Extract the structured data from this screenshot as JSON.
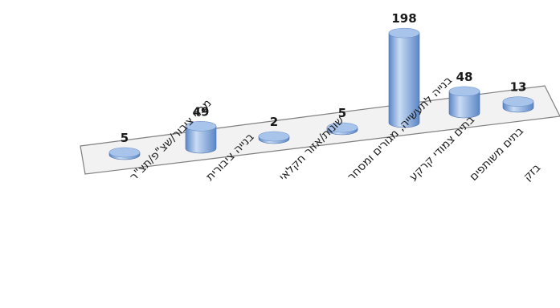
{
  "chart_data": {
    "type": "bar",
    "shape": "3d-cylinder",
    "categories": [
      "מבני ציבור/שצ\"פ/תצ\"ר",
      "בנייה ציבורית",
      "שונות/אזור חקלאי",
      "בנייה לתעשייה, מגורים ומסחר",
      "בתים צמודי קרקע",
      "בתים משותפים",
      "בזק"
    ],
    "values": [
      5,
      49,
      2,
      5,
      198,
      48,
      13
    ],
    "value_labels": [
      "5",
      "49",
      "2",
      "5",
      "198",
      "48",
      "13"
    ],
    "title": "",
    "xlabel": "",
    "ylabel": "",
    "ylim": [
      0,
      200
    ],
    "grid": false,
    "legend": "none",
    "bar_color": "#5b86c6",
    "bar_highlight": "#c9dcf4",
    "bar_top_color": "#a9c4ea",
    "floor_color": "#f2f2f2",
    "floor_stroke": "#7f7f7f"
  }
}
